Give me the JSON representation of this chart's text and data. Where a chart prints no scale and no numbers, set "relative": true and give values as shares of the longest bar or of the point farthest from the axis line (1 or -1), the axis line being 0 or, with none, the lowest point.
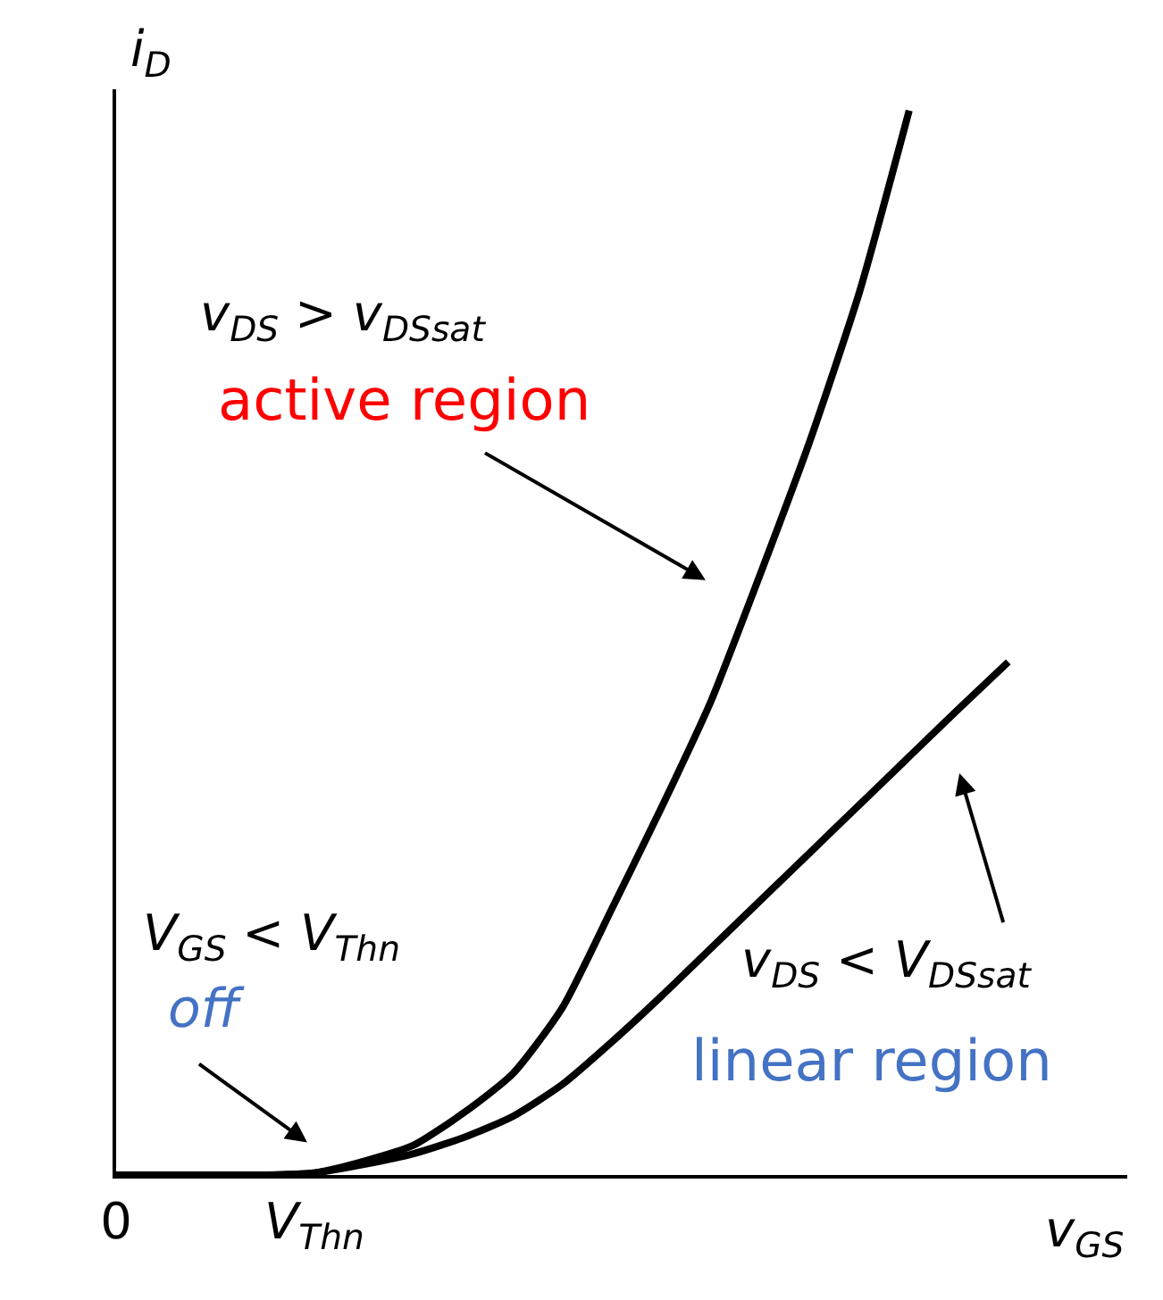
{
  "chart_data": {
    "type": "line",
    "relative": true,
    "xlabel": "v$_{GS}$",
    "ylabel": "i$_{D}$",
    "categories": [
      "0",
      null,
      null,
      null,
      "V$_{Thn}$",
      null,
      null,
      null,
      null,
      null,
      null,
      null,
      null,
      null,
      null,
      null,
      null,
      null,
      null,
      null,
      null
    ],
    "tick_labels": "x",
    "marker": "none",
    "line_style": "solid",
    "series": [
      {
        "color": "#000000",
        "values": [
          0,
          0,
          0,
          0,
          0.002,
          0.013,
          0.028,
          0.058,
          0.095,
          0.157,
          0.25,
          0.345,
          0.445,
          0.565,
          0.69,
          0.83,
          1.0,
          null,
          null,
          null,
          null
        ]
      },
      {
        "color": "#000000",
        "values": [
          null,
          null,
          0,
          0,
          0.002,
          0.01,
          0.02,
          0.035,
          0.055,
          0.085,
          0.125,
          0.168,
          0.213,
          0.258,
          0.303,
          0.348,
          0.393,
          0.438,
          0.482,
          null,
          null
        ]
      }
    ],
    "annotations": [
      "v$_{DS}$ > v$_{DSsat}$",
      "active region",
      "V$_{GS}$ < V$_{Thn}$",
      "off",
      "v$_{DS}$ < V$_{DSsat}$",
      "linear region"
    ]
  }
}
